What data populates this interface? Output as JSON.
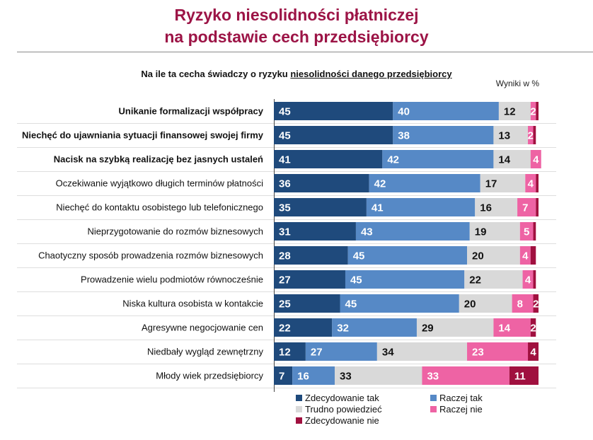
{
  "chart_data": {
    "type": "bar",
    "orientation": "horizontal",
    "stacked": true,
    "title": [
      "Ryzyko niesolidności płatniczej",
      "na podstawie cech przedsiębiorcy"
    ],
    "question_prefix": "Na ile ta cecha świadczy o ryzyku ",
    "question_underlined": "niesolidności danego przedsiębiorcy",
    "unit_note": "Wyniki w %",
    "xlim": [
      0,
      100
    ],
    "categories": [
      "Unikanie formalizacji współpracy",
      "Niechęć do ujawniania sytuacji finansowej swojej firmy",
      "Nacisk na szybką realizację bez jasnych ustaleń",
      "Oczekiwanie wyjątkowo długich terminów płatności",
      "Niechęć do kontaktu osobistego lub telefonicznego",
      "Nieprzygotowanie do rozmów biznesowych",
      "Chaotyczny sposób prowadzenia rozmów biznesowych",
      "Prowadzenie wielu podmiotów równocześnie",
      "Niska kultura osobista w kontakcie",
      "Agresywne negocjowanie cen",
      "Niedbały wygląd zewnętrzny",
      "Młody wiek przedsiębiorcy"
    ],
    "bold_categories": [
      0,
      1,
      2
    ],
    "series": [
      {
        "name": "Zdecydowanie tak",
        "color": "#1f4a7c",
        "label_color": "#ffffff",
        "values": [
          45,
          45,
          41,
          36,
          35,
          31,
          28,
          27,
          25,
          22,
          12,
          7
        ]
      },
      {
        "name": "Raczej tak",
        "color": "#5689c6",
        "label_color": "#ffffff",
        "values": [
          40,
          38,
          42,
          42,
          41,
          43,
          45,
          45,
          45,
          32,
          27,
          16
        ]
      },
      {
        "name": "Trudno powiedzieć",
        "color": "#d9d9d9",
        "label_color": "#111111",
        "values": [
          12,
          13,
          14,
          17,
          16,
          19,
          20,
          22,
          20,
          29,
          34,
          33
        ]
      },
      {
        "name": "Raczej nie",
        "color": "#ee63a4",
        "label_color": "#ffffff",
        "values": [
          2,
          2,
          4,
          4,
          7,
          5,
          4,
          4,
          8,
          14,
          23,
          33
        ]
      },
      {
        "name": "Zdecydowanie nie",
        "color": "#a0103f",
        "label_color": "#ffffff",
        "values": [
          1,
          1,
          0,
          1,
          1,
          1,
          2,
          1,
          2,
          2,
          4,
          11
        ]
      }
    ],
    "shown_labels": [
      [
        45,
        40,
        12,
        2,
        null
      ],
      [
        45,
        38,
        13,
        2,
        null
      ],
      [
        41,
        42,
        14,
        4,
        null
      ],
      [
        36,
        42,
        17,
        4,
        null
      ],
      [
        35,
        41,
        16,
        7,
        null
      ],
      [
        31,
        43,
        19,
        5,
        null
      ],
      [
        28,
        45,
        20,
        4,
        null
      ],
      [
        27,
        45,
        22,
        4,
        null
      ],
      [
        25,
        45,
        20,
        8,
        2
      ],
      [
        22,
        32,
        29,
        14,
        2
      ],
      [
        12,
        27,
        34,
        23,
        4
      ],
      [
        7,
        16,
        33,
        33,
        11
      ]
    ],
    "legend": [
      {
        "label": "Zdecydowanie tak",
        "color": "#1f4a7c"
      },
      {
        "label": "Raczej tak",
        "color": "#5689c6"
      },
      {
        "label": "Trudno powiedzieć",
        "color": "#d9d9d9"
      },
      {
        "label": "Raczej nie",
        "color": "#ee63a4"
      },
      {
        "label": "Zdecydowanie nie",
        "color": "#a0103f"
      }
    ]
  }
}
